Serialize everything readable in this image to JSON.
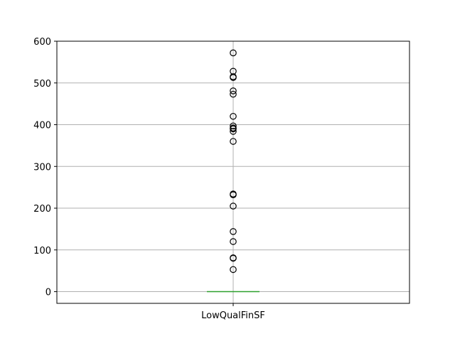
{
  "chart_data": {
    "type": "box",
    "categories": [
      "LowQualFinSF"
    ],
    "ylim": [
      -28,
      600
    ],
    "yticks": [
      0,
      100,
      200,
      300,
      400,
      500,
      600
    ],
    "grid": true,
    "series": [
      {
        "name": "LowQualFinSF",
        "box": {
          "q1": 0,
          "median": 0,
          "q3": 0,
          "whisker_low": 0,
          "whisker_high": 0
        },
        "outliers": [
          572,
          528,
          515,
          513,
          481,
          473,
          420,
          397,
          392,
          390,
          384,
          360,
          234,
          232,
          205,
          144,
          120,
          81,
          80,
          53
        ]
      }
    ],
    "colors": {
      "median": "#2ca02c",
      "box": "#1f77b4",
      "grid": "#b0b0b0",
      "axis": "#000000",
      "outlier": "#000000"
    }
  }
}
